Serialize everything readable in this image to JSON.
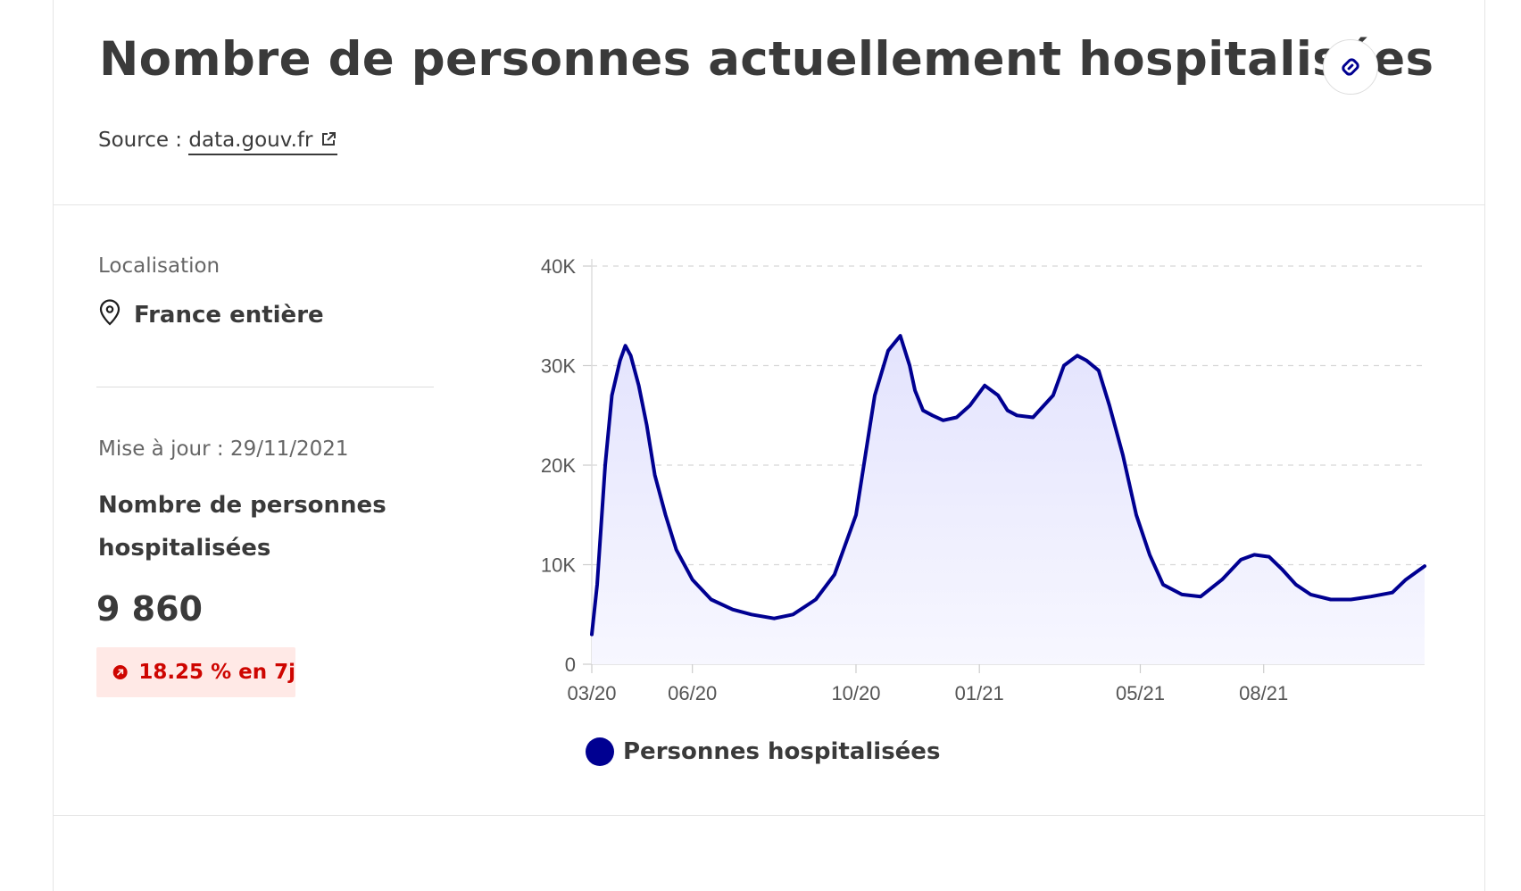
{
  "header": {
    "title": "Nombre de personnes actuellement hospitalisées",
    "source_label": "Source :",
    "source_link": "data.gouv.fr"
  },
  "sidebar": {
    "location_label": "Localisation",
    "location_value": "France entière",
    "update_text": "Mise à jour : 29/11/2021",
    "indicator_title": "Nombre de personnes hospitalisées",
    "indicator_value": "9 860",
    "trend_text": "18.25 % en 7j",
    "trend_color": "#ce0500"
  },
  "legend": {
    "label": "Personnes hospitalisées",
    "color": "#000091"
  },
  "chart_data": {
    "type": "area",
    "title": "",
    "xlabel": "",
    "ylabel": "",
    "ylim": [
      0,
      40000
    ],
    "y_ticks": [
      0,
      10000,
      20000,
      30000,
      40000
    ],
    "y_tick_labels": [
      "0",
      "10K",
      "20K",
      "30K",
      "40K"
    ],
    "x_tick_labels": [
      "03/20",
      "06/20",
      "10/20",
      "01/21",
      "05/21",
      "08/21"
    ],
    "x_tick_positions": [
      "2020-03",
      "2020-06",
      "2020-10",
      "2021-01",
      "2021-05",
      "2021-08"
    ],
    "grid": "horizontal dashed",
    "legend_position": "bottom",
    "series": [
      {
        "name": "Personnes hospitalisées",
        "color": "#000091",
        "x": [
          "2020-03-18",
          "2020-03-22",
          "2020-03-28",
          "2020-04-02",
          "2020-04-08",
          "2020-04-12",
          "2020-04-16",
          "2020-04-22",
          "2020-04-28",
          "2020-05-04",
          "2020-05-12",
          "2020-05-20",
          "2020-06-01",
          "2020-06-15",
          "2020-07-01",
          "2020-07-15",
          "2020-08-01",
          "2020-08-15",
          "2020-09-01",
          "2020-09-15",
          "2020-10-01",
          "2020-10-15",
          "2020-10-25",
          "2020-11-03",
          "2020-11-10",
          "2020-11-14",
          "2020-11-20",
          "2020-11-27",
          "2020-12-05",
          "2020-12-15",
          "2020-12-25",
          "2021-01-05",
          "2021-01-15",
          "2021-01-22",
          "2021-01-29",
          "2021-02-10",
          "2021-02-25",
          "2021-03-05",
          "2021-03-15",
          "2021-03-22",
          "2021-03-31",
          "2021-04-08",
          "2021-04-18",
          "2021-04-28",
          "2021-05-08",
          "2021-05-18",
          "2021-06-01",
          "2021-06-15",
          "2021-07-01",
          "2021-07-15",
          "2021-07-25",
          "2021-08-05",
          "2021-08-15",
          "2021-08-25",
          "2021-09-05",
          "2021-09-20",
          "2021-10-05",
          "2021-10-20",
          "2021-11-05",
          "2021-11-15",
          "2021-11-29"
        ],
        "values": [
          3000,
          8000,
          20000,
          27000,
          30500,
          32000,
          31000,
          28000,
          24000,
          19000,
          15000,
          11500,
          8500,
          6500,
          5500,
          5000,
          4600,
          5000,
          6500,
          9000,
          15000,
          27000,
          31500,
          33000,
          30000,
          27500,
          25500,
          25000,
          24500,
          24800,
          26000,
          28000,
          27000,
          25500,
          25000,
          24800,
          27000,
          30000,
          31000,
          30500,
          29500,
          26000,
          21000,
          15000,
          11000,
          8000,
          7000,
          6800,
          8500,
          10500,
          11000,
          10800,
          9500,
          8000,
          7000,
          6500,
          6500,
          6800,
          7200,
          8500,
          9860
        ]
      }
    ]
  }
}
